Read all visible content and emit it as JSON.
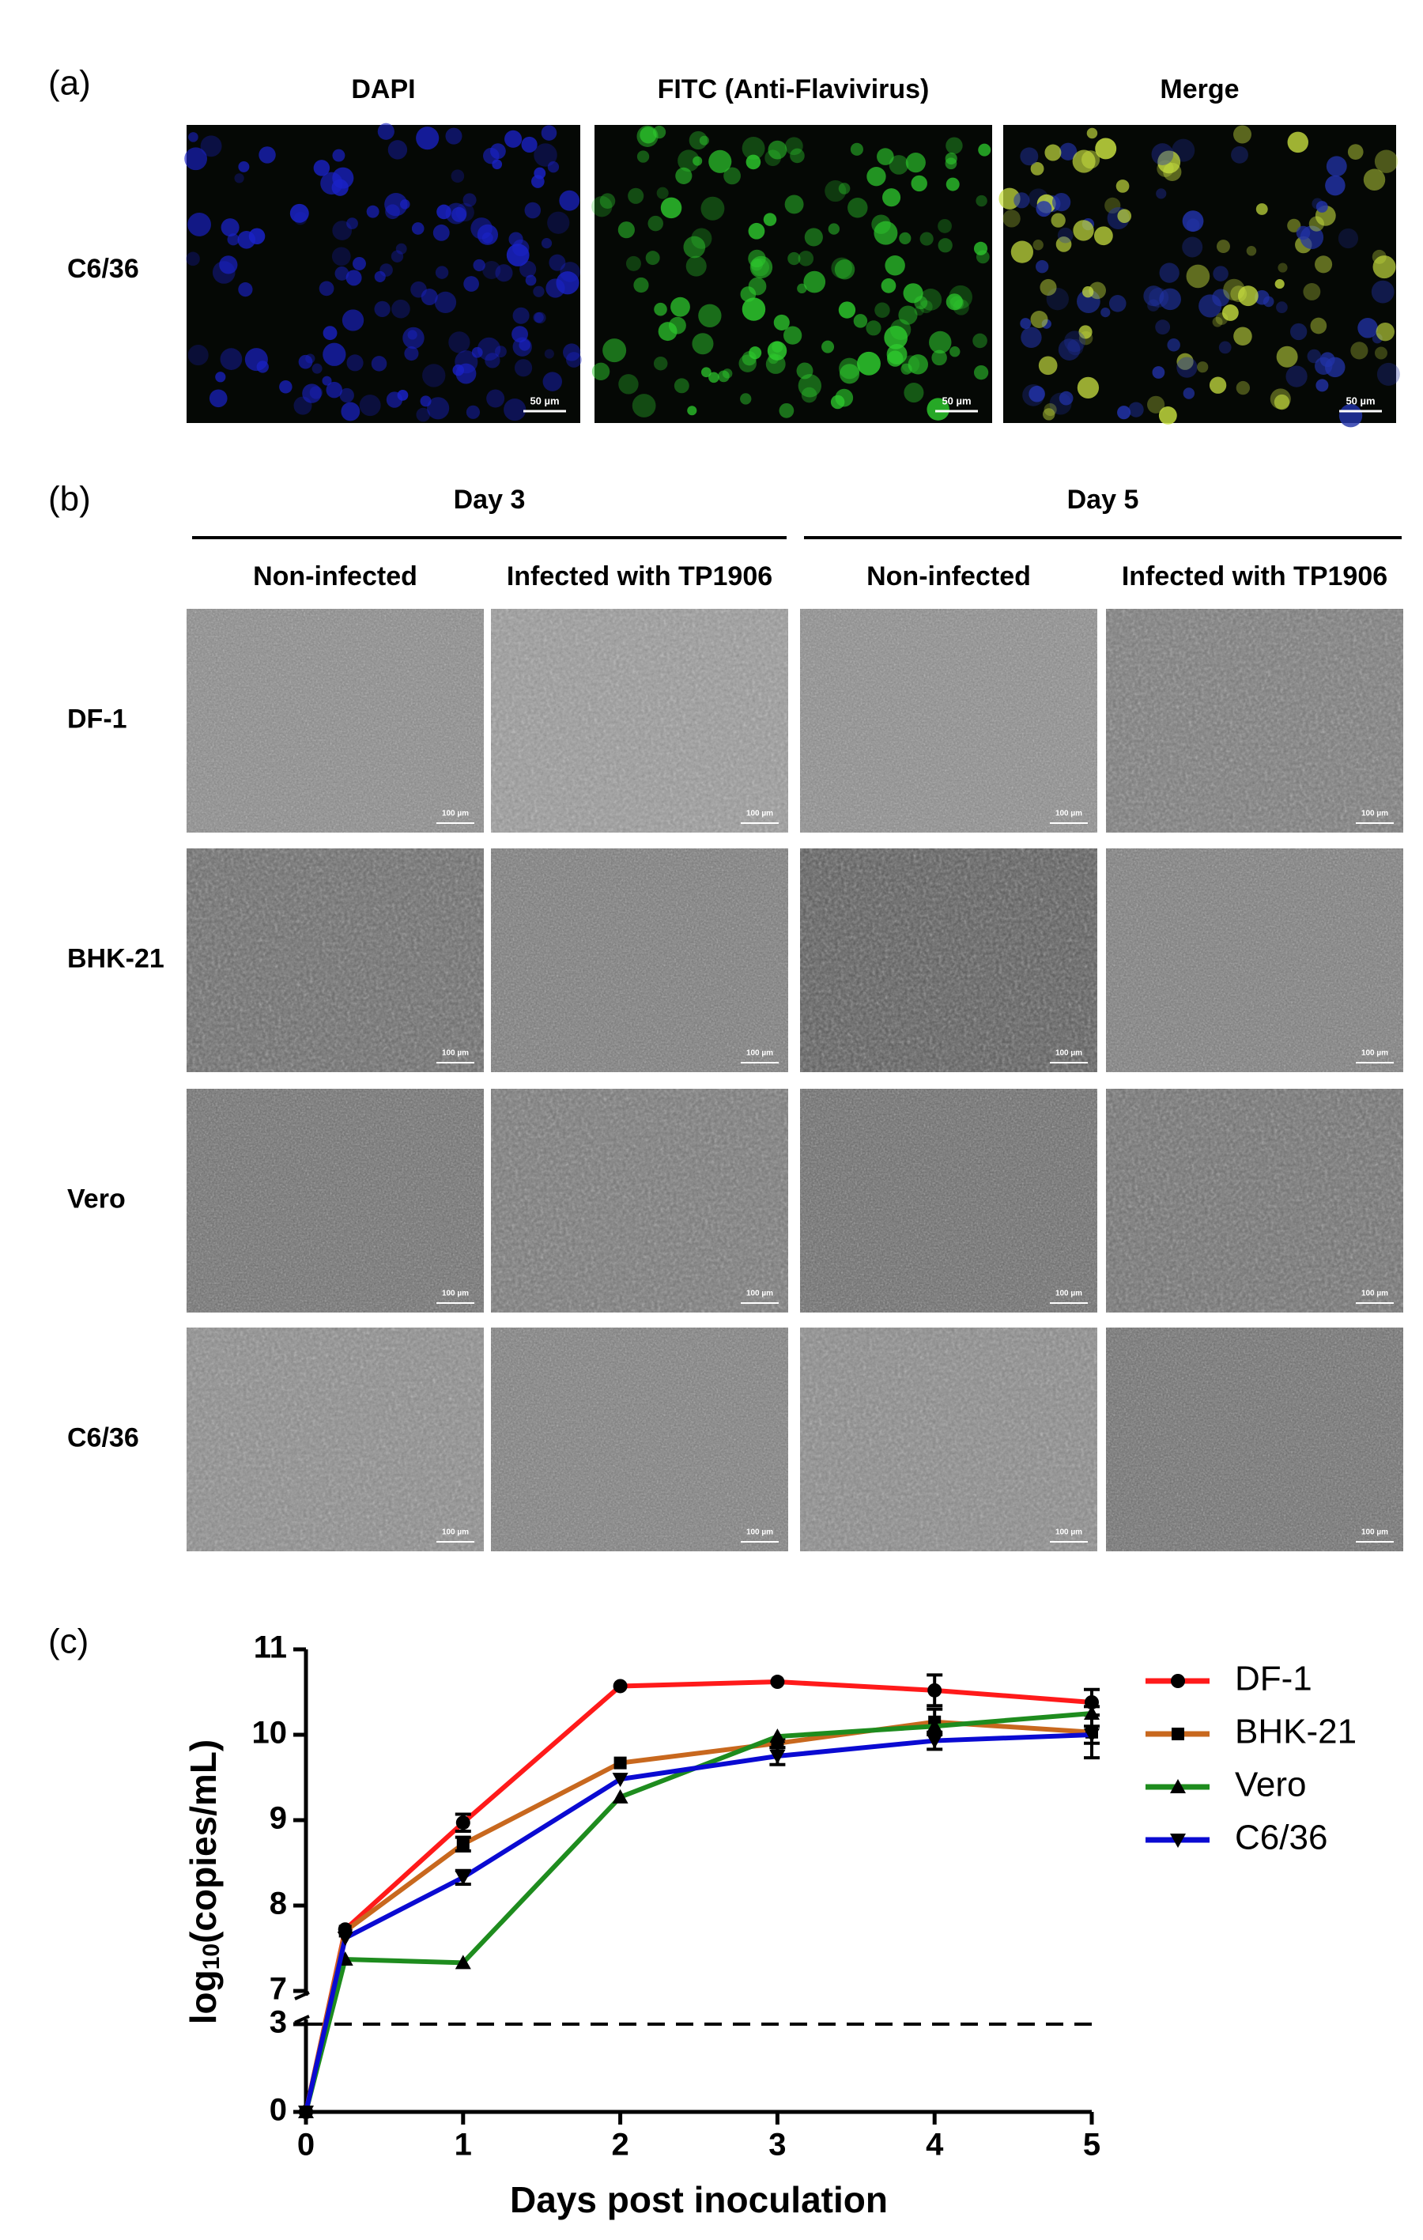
{
  "panel_a": {
    "label": "(a)",
    "columns": [
      "DAPI",
      "FITC (Anti-Flavivirus)",
      "Merge"
    ],
    "row": "C6/36",
    "scale_bar": "50 µm"
  },
  "panel_b": {
    "label": "(b)",
    "groups": [
      "Day 3",
      "Day 5"
    ],
    "columns": [
      "Non-infected",
      "Infected with TP1906",
      "Non-infected",
      "Infected with TP1906"
    ],
    "rows": [
      "DF-1",
      "BHK-21",
      "Vero",
      "C6/36"
    ],
    "scale_bar": "100 µm"
  },
  "chart_data": {
    "type": "line",
    "label": "(c)",
    "xlabel": "Days post inoculation",
    "ylabel": [
      "log",
      "10",
      "(copies/mL)"
    ],
    "x": [
      0,
      0.25,
      1,
      2,
      3,
      4,
      5
    ],
    "xlim": [
      0,
      5
    ],
    "xticks": [
      0,
      1,
      2,
      3,
      4,
      5
    ],
    "ylim": [
      0,
      11
    ],
    "ybreak": [
      3,
      7
    ],
    "yticks": [
      0,
      3,
      7,
      8,
      9,
      10,
      11
    ],
    "hline": 3,
    "legend": "upper right",
    "series": [
      {
        "name": "DF-1",
        "color": "#ff1a1a",
        "marker": "circle",
        "values": [
          0,
          7.72,
          8.97,
          10.57,
          10.62,
          10.52,
          10.38
        ],
        "errors": [
          0,
          0,
          0.1,
          0,
          0,
          0.18,
          0.15
        ]
      },
      {
        "name": "BHK-21",
        "color": "#c8681e",
        "marker": "square",
        "values": [
          0,
          7.7,
          8.72,
          9.67,
          9.9,
          10.15,
          10.03
        ],
        "errors": [
          0,
          0,
          0.08,
          0,
          0.05,
          0.15,
          0.3
        ]
      },
      {
        "name": "Vero",
        "color": "#1e8c1e",
        "marker": "triangle-up",
        "values": [
          0,
          7.37,
          7.33,
          9.27,
          9.98,
          10.1,
          10.25
        ],
        "errors": [
          0,
          0,
          0,
          0,
          0,
          0,
          0
        ]
      },
      {
        "name": "C6/36",
        "color": "#0a0ad2",
        "marker": "triangle-down",
        "values": [
          0,
          7.62,
          8.33,
          9.48,
          9.75,
          9.93,
          10.0
        ],
        "errors": [
          0,
          0,
          0.08,
          0,
          0.1,
          0.1,
          0.1
        ]
      }
    ]
  }
}
